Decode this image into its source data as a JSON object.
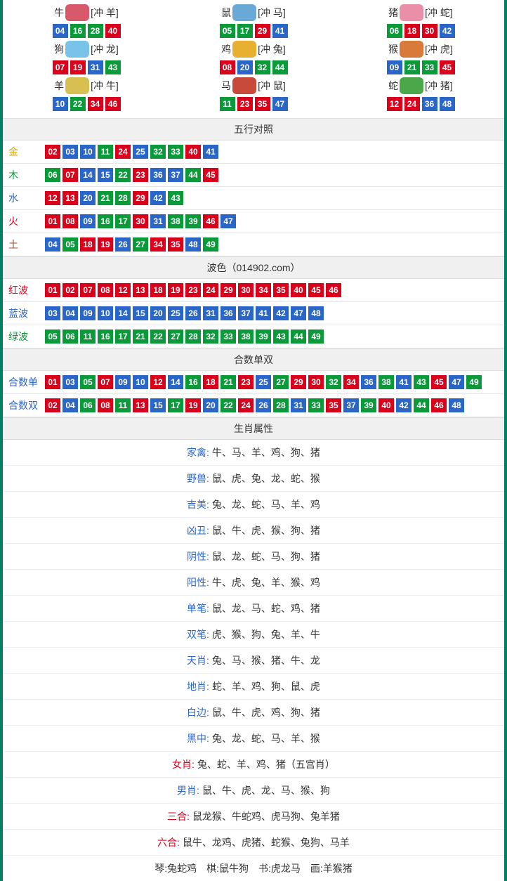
{
  "palette": {
    "red": "#d9001b",
    "blue": "#2a66c8",
    "green": "#0a9a3a"
  },
  "label_colors": {
    "金": "#d9a400",
    "木": "#0a9a3a",
    "水": "#2a66c8",
    "火": "#d9001b",
    "土": "#a0522d",
    "红波": "#d9001b",
    "蓝波": "#2a66c8",
    "绿波": "#0a9a3a",
    "合数单": "#2a66c8",
    "合数双": "#2a66c8"
  },
  "zodiac": [
    {
      "name": "牛",
      "clash": "[冲 羊]",
      "icon": "#d85a6a",
      "nums": [
        {
          "n": "04",
          "c": "blue"
        },
        {
          "n": "16",
          "c": "green"
        },
        {
          "n": "28",
          "c": "green"
        },
        {
          "n": "40",
          "c": "red"
        }
      ]
    },
    {
      "name": "鼠",
      "clash": "[冲 马]",
      "icon": "#6aa8d8",
      "nums": [
        {
          "n": "05",
          "c": "green"
        },
        {
          "n": "17",
          "c": "green"
        },
        {
          "n": "29",
          "c": "red"
        },
        {
          "n": "41",
          "c": "blue"
        }
      ]
    },
    {
      "name": "猪",
      "clash": "[冲 蛇]",
      "icon": "#e98fa8",
      "nums": [
        {
          "n": "06",
          "c": "green"
        },
        {
          "n": "18",
          "c": "red"
        },
        {
          "n": "30",
          "c": "red"
        },
        {
          "n": "42",
          "c": "blue"
        }
      ]
    },
    {
      "name": "狗",
      "clash": "[冲 龙]",
      "icon": "#7ac3e8",
      "nums": [
        {
          "n": "07",
          "c": "red"
        },
        {
          "n": "19",
          "c": "red"
        },
        {
          "n": "31",
          "c": "blue"
        },
        {
          "n": "43",
          "c": "green"
        }
      ]
    },
    {
      "name": "鸡",
      "clash": "[冲 兔]",
      "icon": "#e8b030",
      "nums": [
        {
          "n": "08",
          "c": "red"
        },
        {
          "n": "20",
          "c": "blue"
        },
        {
          "n": "32",
          "c": "green"
        },
        {
          "n": "44",
          "c": "green"
        }
      ]
    },
    {
      "name": "猴",
      "clash": "[冲 虎]",
      "icon": "#d87a3a",
      "nums": [
        {
          "n": "09",
          "c": "blue"
        },
        {
          "n": "21",
          "c": "green"
        },
        {
          "n": "33",
          "c": "green"
        },
        {
          "n": "45",
          "c": "red"
        }
      ]
    },
    {
      "name": "羊",
      "clash": "[冲 牛]",
      "icon": "#d8c050",
      "nums": [
        {
          "n": "10",
          "c": "blue"
        },
        {
          "n": "22",
          "c": "green"
        },
        {
          "n": "34",
          "c": "red"
        },
        {
          "n": "46",
          "c": "red"
        }
      ]
    },
    {
      "name": "马",
      "clash": "[冲 鼠]",
      "icon": "#c84a3a",
      "nums": [
        {
          "n": "11",
          "c": "green"
        },
        {
          "n": "23",
          "c": "red"
        },
        {
          "n": "35",
          "c": "red"
        },
        {
          "n": "47",
          "c": "blue"
        }
      ]
    },
    {
      "name": "蛇",
      "clash": "[冲 猪]",
      "icon": "#4aa84a",
      "nums": [
        {
          "n": "12",
          "c": "red"
        },
        {
          "n": "24",
          "c": "red"
        },
        {
          "n": "36",
          "c": "blue"
        },
        {
          "n": "48",
          "c": "blue"
        }
      ]
    }
  ],
  "sections": {
    "wuxing": {
      "title": "五行对照",
      "rows": [
        {
          "label": "金",
          "nums": [
            {
              "n": "02",
              "c": "red"
            },
            {
              "n": "03",
              "c": "blue"
            },
            {
              "n": "10",
              "c": "blue"
            },
            {
              "n": "11",
              "c": "green"
            },
            {
              "n": "24",
              "c": "red"
            },
            {
              "n": "25",
              "c": "blue"
            },
            {
              "n": "32",
              "c": "green"
            },
            {
              "n": "33",
              "c": "green"
            },
            {
              "n": "40",
              "c": "red"
            },
            {
              "n": "41",
              "c": "blue"
            }
          ]
        },
        {
          "label": "木",
          "nums": [
            {
              "n": "06",
              "c": "green"
            },
            {
              "n": "07",
              "c": "red"
            },
            {
              "n": "14",
              "c": "blue"
            },
            {
              "n": "15",
              "c": "blue"
            },
            {
              "n": "22",
              "c": "green"
            },
            {
              "n": "23",
              "c": "red"
            },
            {
              "n": "36",
              "c": "blue"
            },
            {
              "n": "37",
              "c": "blue"
            },
            {
              "n": "44",
              "c": "green"
            },
            {
              "n": "45",
              "c": "red"
            }
          ]
        },
        {
          "label": "水",
          "nums": [
            {
              "n": "12",
              "c": "red"
            },
            {
              "n": "13",
              "c": "red"
            },
            {
              "n": "20",
              "c": "blue"
            },
            {
              "n": "21",
              "c": "green"
            },
            {
              "n": "28",
              "c": "green"
            },
            {
              "n": "29",
              "c": "red"
            },
            {
              "n": "42",
              "c": "blue"
            },
            {
              "n": "43",
              "c": "green"
            }
          ]
        },
        {
          "label": "火",
          "nums": [
            {
              "n": "01",
              "c": "red"
            },
            {
              "n": "08",
              "c": "red"
            },
            {
              "n": "09",
              "c": "blue"
            },
            {
              "n": "16",
              "c": "green"
            },
            {
              "n": "17",
              "c": "green"
            },
            {
              "n": "30",
              "c": "red"
            },
            {
              "n": "31",
              "c": "blue"
            },
            {
              "n": "38",
              "c": "green"
            },
            {
              "n": "39",
              "c": "green"
            },
            {
              "n": "46",
              "c": "red"
            },
            {
              "n": "47",
              "c": "blue"
            }
          ]
        },
        {
          "label": "土",
          "nums": [
            {
              "n": "04",
              "c": "blue"
            },
            {
              "n": "05",
              "c": "green"
            },
            {
              "n": "18",
              "c": "red"
            },
            {
              "n": "19",
              "c": "red"
            },
            {
              "n": "26",
              "c": "blue"
            },
            {
              "n": "27",
              "c": "green"
            },
            {
              "n": "34",
              "c": "red"
            },
            {
              "n": "35",
              "c": "red"
            },
            {
              "n": "48",
              "c": "blue"
            },
            {
              "n": "49",
              "c": "green"
            }
          ]
        }
      ]
    },
    "bose": {
      "title": "波色（014902.com）",
      "rows": [
        {
          "label": "红波",
          "nums": [
            {
              "n": "01",
              "c": "red"
            },
            {
              "n": "02",
              "c": "red"
            },
            {
              "n": "07",
              "c": "red"
            },
            {
              "n": "08",
              "c": "red"
            },
            {
              "n": "12",
              "c": "red"
            },
            {
              "n": "13",
              "c": "red"
            },
            {
              "n": "18",
              "c": "red"
            },
            {
              "n": "19",
              "c": "red"
            },
            {
              "n": "23",
              "c": "red"
            },
            {
              "n": "24",
              "c": "red"
            },
            {
              "n": "29",
              "c": "red"
            },
            {
              "n": "30",
              "c": "red"
            },
            {
              "n": "34",
              "c": "red"
            },
            {
              "n": "35",
              "c": "red"
            },
            {
              "n": "40",
              "c": "red"
            },
            {
              "n": "45",
              "c": "red"
            },
            {
              "n": "46",
              "c": "red"
            }
          ]
        },
        {
          "label": "蓝波",
          "nums": [
            {
              "n": "03",
              "c": "blue"
            },
            {
              "n": "04",
              "c": "blue"
            },
            {
              "n": "09",
              "c": "blue"
            },
            {
              "n": "10",
              "c": "blue"
            },
            {
              "n": "14",
              "c": "blue"
            },
            {
              "n": "15",
              "c": "blue"
            },
            {
              "n": "20",
              "c": "blue"
            },
            {
              "n": "25",
              "c": "blue"
            },
            {
              "n": "26",
              "c": "blue"
            },
            {
              "n": "31",
              "c": "blue"
            },
            {
              "n": "36",
              "c": "blue"
            },
            {
              "n": "37",
              "c": "blue"
            },
            {
              "n": "41",
              "c": "blue"
            },
            {
              "n": "42",
              "c": "blue"
            },
            {
              "n": "47",
              "c": "blue"
            },
            {
              "n": "48",
              "c": "blue"
            }
          ]
        },
        {
          "label": "绿波",
          "nums": [
            {
              "n": "05",
              "c": "green"
            },
            {
              "n": "06",
              "c": "green"
            },
            {
              "n": "11",
              "c": "green"
            },
            {
              "n": "16",
              "c": "green"
            },
            {
              "n": "17",
              "c": "green"
            },
            {
              "n": "21",
              "c": "green"
            },
            {
              "n": "22",
              "c": "green"
            },
            {
              "n": "27",
              "c": "green"
            },
            {
              "n": "28",
              "c": "green"
            },
            {
              "n": "32",
              "c": "green"
            },
            {
              "n": "33",
              "c": "green"
            },
            {
              "n": "38",
              "c": "green"
            },
            {
              "n": "39",
              "c": "green"
            },
            {
              "n": "43",
              "c": "green"
            },
            {
              "n": "44",
              "c": "green"
            },
            {
              "n": "49",
              "c": "green"
            }
          ]
        }
      ]
    },
    "heshu": {
      "title": "合数单双",
      "rows": [
        {
          "label": "合数单",
          "nums": [
            {
              "n": "01",
              "c": "red"
            },
            {
              "n": "03",
              "c": "blue"
            },
            {
              "n": "05",
              "c": "green"
            },
            {
              "n": "07",
              "c": "red"
            },
            {
              "n": "09",
              "c": "blue"
            },
            {
              "n": "10",
              "c": "blue"
            },
            {
              "n": "12",
              "c": "red"
            },
            {
              "n": "14",
              "c": "blue"
            },
            {
              "n": "16",
              "c": "green"
            },
            {
              "n": "18",
              "c": "red"
            },
            {
              "n": "21",
              "c": "green"
            },
            {
              "n": "23",
              "c": "red"
            },
            {
              "n": "25",
              "c": "blue"
            },
            {
              "n": "27",
              "c": "green"
            },
            {
              "n": "29",
              "c": "red"
            },
            {
              "n": "30",
              "c": "red"
            },
            {
              "n": "32",
              "c": "green"
            },
            {
              "n": "34",
              "c": "red"
            },
            {
              "n": "36",
              "c": "blue"
            },
            {
              "n": "38",
              "c": "green"
            },
            {
              "n": "41",
              "c": "blue"
            },
            {
              "n": "43",
              "c": "green"
            },
            {
              "n": "45",
              "c": "red"
            },
            {
              "n": "47",
              "c": "blue"
            },
            {
              "n": "49",
              "c": "green"
            }
          ]
        },
        {
          "label": "合数双",
          "nums": [
            {
              "n": "02",
              "c": "red"
            },
            {
              "n": "04",
              "c": "blue"
            },
            {
              "n": "06",
              "c": "green"
            },
            {
              "n": "08",
              "c": "red"
            },
            {
              "n": "11",
              "c": "green"
            },
            {
              "n": "13",
              "c": "red"
            },
            {
              "n": "15",
              "c": "blue"
            },
            {
              "n": "17",
              "c": "green"
            },
            {
              "n": "19",
              "c": "red"
            },
            {
              "n": "20",
              "c": "blue"
            },
            {
              "n": "22",
              "c": "green"
            },
            {
              "n": "24",
              "c": "red"
            },
            {
              "n": "26",
              "c": "blue"
            },
            {
              "n": "28",
              "c": "green"
            },
            {
              "n": "31",
              "c": "blue"
            },
            {
              "n": "33",
              "c": "green"
            },
            {
              "n": "35",
              "c": "red"
            },
            {
              "n": "37",
              "c": "blue"
            },
            {
              "n": "39",
              "c": "green"
            },
            {
              "n": "40",
              "c": "red"
            },
            {
              "n": "42",
              "c": "blue"
            },
            {
              "n": "44",
              "c": "green"
            },
            {
              "n": "46",
              "c": "red"
            },
            {
              "n": "48",
              "c": "blue"
            }
          ]
        }
      ]
    }
  },
  "attrs": {
    "title": "生肖属性",
    "rows": [
      {
        "label": "家禽:",
        "color": "#2a66c8",
        "text": "牛、马、羊、鸡、狗、猪"
      },
      {
        "label": "野兽:",
        "color": "#2a66c8",
        "text": "鼠、虎、兔、龙、蛇、猴"
      },
      {
        "label": "吉美:",
        "color": "#2a66c8",
        "text": "兔、龙、蛇、马、羊、鸡"
      },
      {
        "label": "凶丑:",
        "color": "#2a66c8",
        "text": "鼠、牛、虎、猴、狗、猪"
      },
      {
        "label": "阴性:",
        "color": "#2a66c8",
        "text": "鼠、龙、蛇、马、狗、猪"
      },
      {
        "label": "阳性:",
        "color": "#2a66c8",
        "text": "牛、虎、兔、羊、猴、鸡"
      },
      {
        "label": "单笔:",
        "color": "#2a66c8",
        "text": "鼠、龙、马、蛇、鸡、猪"
      },
      {
        "label": "双笔:",
        "color": "#2a66c8",
        "text": "虎、猴、狗、兔、羊、牛"
      },
      {
        "label": "天肖:",
        "color": "#2a66c8",
        "text": "兔、马、猴、猪、牛、龙"
      },
      {
        "label": "地肖:",
        "color": "#2a66c8",
        "text": "蛇、羊、鸡、狗、鼠、虎"
      },
      {
        "label": "白边:",
        "color": "#2a66c8",
        "text": "鼠、牛、虎、鸡、狗、猪"
      },
      {
        "label": "黑中:",
        "color": "#2a66c8",
        "text": "兔、龙、蛇、马、羊、猴"
      },
      {
        "label": "女肖:",
        "color": "#d9001b",
        "text": "兔、蛇、羊、鸡、猪（五宫肖）"
      },
      {
        "label": "男肖:",
        "color": "#2a66c8",
        "text": "鼠、牛、虎、龙、马、猴、狗"
      },
      {
        "label": "三合:",
        "color": "#d9001b",
        "text": "鼠龙猴、牛蛇鸡、虎马狗、兔羊猪"
      },
      {
        "label": "六合:",
        "color": "#d9001b",
        "text": "鼠牛、龙鸡、虎猪、蛇猴、兔狗、马羊"
      }
    ]
  },
  "footer_line": "琴:兔蛇鸡　棋:鼠牛狗　书:虎龙马　画:羊猴猪"
}
